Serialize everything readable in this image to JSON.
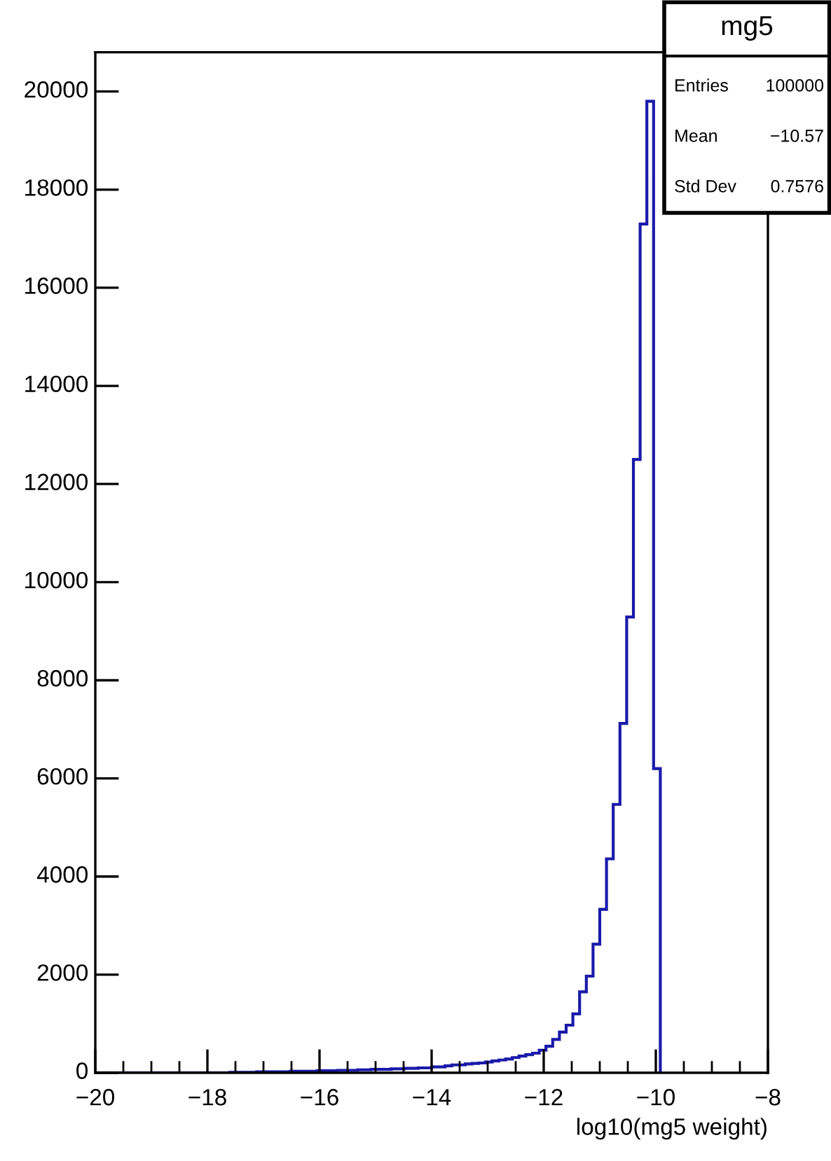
{
  "chart_data": {
    "type": "histogram",
    "title": "mg5",
    "xlabel": "log10(mg5 weight)",
    "annotations": [
      "Entries",
      "100000",
      "Mean",
      "−10.57",
      "Std Dev",
      "0.7576"
    ],
    "bins": [
      -20,
      -19.88,
      -19.76,
      -19.64,
      -19.52,
      -19.4,
      -19.28,
      -19.16,
      -19.04,
      -18.92,
      -18.8,
      -18.68,
      -18.56,
      -18.44,
      -18.32,
      -18.2,
      -18.08,
      -17.96,
      -17.84,
      -17.72,
      -17.6,
      -17.48,
      -17.36,
      -17.24,
      -17.12,
      -17,
      -16.88,
      -16.76,
      -16.64,
      -16.52,
      -16.4,
      -16.28,
      -16.16,
      -16.04,
      -15.92,
      -15.8,
      -15.68,
      -15.56,
      -15.44,
      -15.32,
      -15.2,
      -15.08,
      -14.96,
      -14.84,
      -14.72,
      -14.6,
      -14.48,
      -14.36,
      -14.24,
      -14.12,
      -14,
      -13.88,
      -13.76,
      -13.64,
      -13.52,
      -13.4,
      -13.28,
      -13.16,
      -13.04,
      -12.92,
      -12.8,
      -12.68,
      -12.56,
      -12.44,
      -12.32,
      -12.2,
      -12.08,
      -11.96,
      -11.84,
      -11.72,
      -11.6,
      -11.48,
      -11.36,
      -11.24,
      -11.12,
      -11,
      -10.88,
      -10.76,
      -10.64,
      -10.52,
      -10.4,
      -10.28,
      -10.16,
      -10.04,
      -9.92
    ],
    "values": [
      0,
      0,
      0,
      0,
      0,
      0,
      0,
      0,
      0,
      0,
      0,
      0,
      0,
      0,
      0,
      0,
      0,
      0,
      0,
      0,
      10,
      10,
      10,
      10,
      20,
      20,
      20,
      20,
      20,
      30,
      30,
      30,
      30,
      40,
      40,
      40,
      50,
      50,
      50,
      60,
      60,
      70,
      70,
      70,
      80,
      80,
      90,
      90,
      100,
      100,
      120,
      120,
      140,
      160,
      160,
      180,
      190,
      200,
      220,
      240,
      260,
      280,
      310,
      340,
      370,
      400,
      460,
      540,
      680,
      830,
      970,
      1200,
      1650,
      1970,
      2620,
      3330,
      4360,
      5470,
      7120,
      9290,
      12500,
      17300,
      19800,
      6200
    ],
    "color": "#1a1aaa",
    "xlim": [
      -20,
      -8
    ],
    "xticks": [
      -20,
      -18,
      -16,
      -14,
      -12,
      -10,
      -8
    ],
    "ylim": [
      0,
      20800
    ],
    "yticks": [
      0,
      2000,
      4000,
      6000,
      8000,
      10000,
      12000,
      14000,
      16000,
      18000,
      20000
    ],
    "grid": false
  }
}
